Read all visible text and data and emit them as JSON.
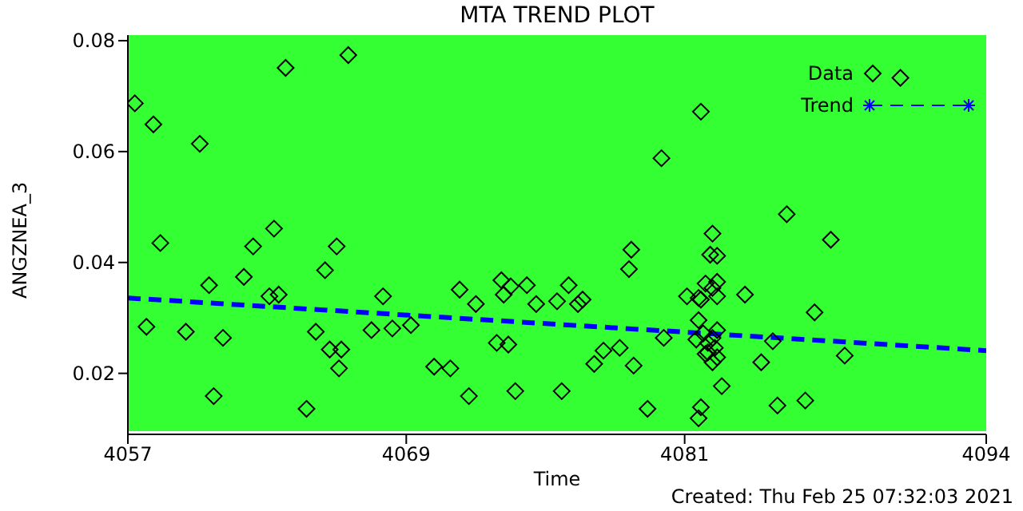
{
  "chart_data": {
    "type": "scatter",
    "title": "MTA TREND PLOT",
    "xlabel": "Time",
    "ylabel": "ANGZNEA_3",
    "annotations": [
      "Created: Thu Feb 25 07:32:03 2021"
    ],
    "xlim": [
      4057,
      4094
    ],
    "xticks": [
      4057,
      4069,
      4081,
      4094
    ],
    "ylim": [
      0.009,
      0.081
    ],
    "yticks": [
      0.02,
      0.04,
      0.06,
      0.08
    ],
    "grid": false,
    "legend": "top right",
    "series": [
      {
        "name": "Data",
        "type": "scatter",
        "marker": "diamond",
        "color": "#000000",
        "x": [
          4057.3,
          4058.1,
          4060.1,
          4063.8,
          4066.5,
          4058.4,
          4060.5,
          4062.0,
          4062.4,
          4063.3,
          4066.0,
          4065.5,
          4063.1,
          4063.5,
          4068.0,
          4057.8,
          4059.5,
          4061.1,
          4065.1,
          4065.7,
          4066.2,
          4066.1,
          4067.5,
          4068.4,
          4069.2,
          4060.7,
          4064.7,
          4071.3,
          4072.0,
          4073.1,
          4073.2,
          4073.5,
          4074.2,
          4074.6,
          4075.5,
          4076.0,
          4076.4,
          4076.6,
          4072.9,
          4073.4,
          4070.2,
          4070.9,
          4071.7,
          4073.7,
          4075.7,
          4077.1,
          4077.5,
          4078.2,
          4078.8,
          4078.7,
          4078.6,
          4080.1,
          4079.4,
          4080.0,
          4081.7,
          4081.1,
          4081.7,
          4082.2,
          4082.1,
          4082.4,
          4081.9,
          4082.4,
          4082.2,
          4082.4,
          4081.6,
          4083.6,
          4081.8,
          4082.2,
          4082.0,
          4082.3,
          4082.0,
          4082.4,
          4082.2,
          4081.9,
          4082.4,
          4081.6,
          4082.6,
          4081.7,
          4081.6,
          4081.5,
          4084.8,
          4084.3,
          4085.4,
          4087.3,
          4086.6,
          4087.9,
          4085.0,
          4086.2,
          4090.3
        ],
        "values": [
          0.0687,
          0.0649,
          0.0614,
          0.0751,
          0.0774,
          0.0435,
          0.0359,
          0.0374,
          0.0429,
          0.0461,
          0.0429,
          0.0386,
          0.0339,
          0.0342,
          0.0339,
          0.0284,
          0.0275,
          0.0264,
          0.0275,
          0.0243,
          0.0243,
          0.0209,
          0.0278,
          0.0281,
          0.0287,
          0.0159,
          0.0136,
          0.0351,
          0.0325,
          0.0368,
          0.0342,
          0.0357,
          0.0359,
          0.0325,
          0.033,
          0.0359,
          0.0325,
          0.0333,
          0.0255,
          0.0252,
          0.0212,
          0.0209,
          0.0159,
          0.0168,
          0.0168,
          0.0217,
          0.0241,
          0.0246,
          0.0214,
          0.0423,
          0.0388,
          0.0264,
          0.0136,
          0.0588,
          0.0672,
          0.0339,
          0.0333,
          0.0452,
          0.0414,
          0.0412,
          0.0362,
          0.0365,
          0.0354,
          0.0339,
          0.0336,
          0.0342,
          0.0272,
          0.0264,
          0.0255,
          0.0246,
          0.0238,
          0.0229,
          0.022,
          0.0235,
          0.0278,
          0.0296,
          0.0177,
          0.0139,
          0.0119,
          0.0261,
          0.0258,
          0.022,
          0.0487,
          0.0441,
          0.031,
          0.0232,
          0.0142,
          0.0151,
          0.0733
        ]
      },
      {
        "name": "Trend",
        "type": "line",
        "line_style": "dashed",
        "color": "#0000ff",
        "x": [
          4057,
          4094
        ],
        "values": [
          0.0336,
          0.0241
        ]
      }
    ]
  }
}
